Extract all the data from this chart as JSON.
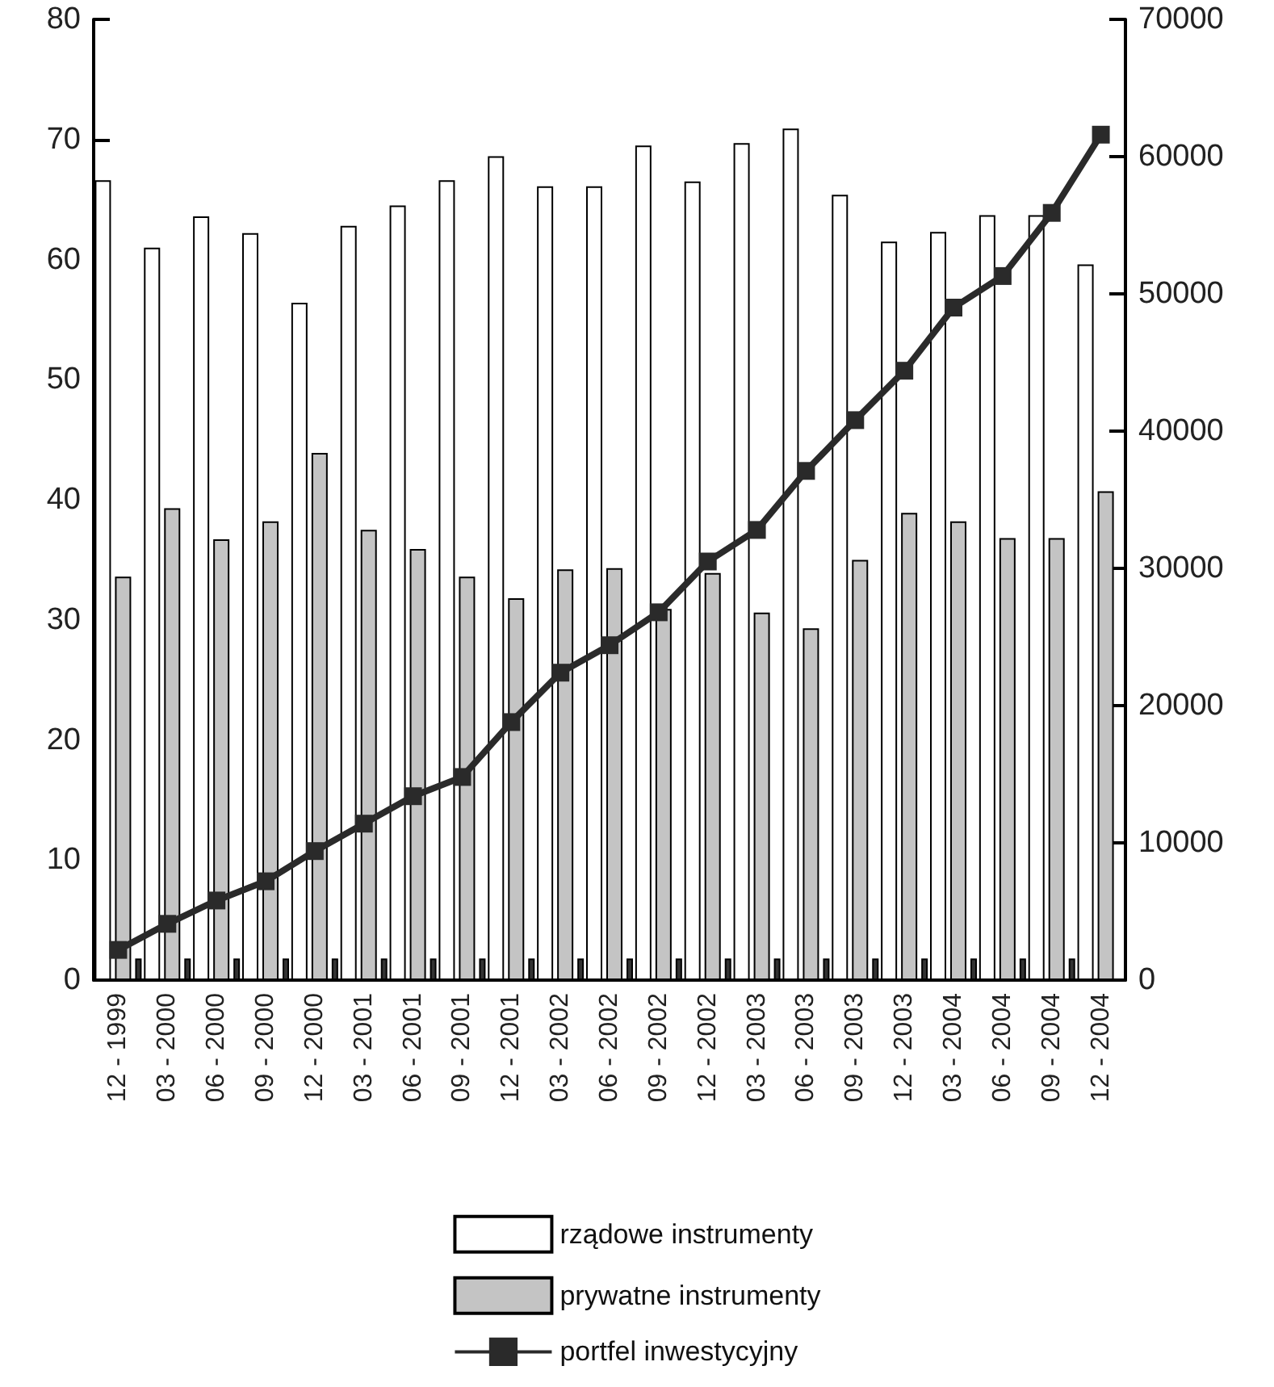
{
  "chart_data": {
    "type": "bar",
    "categories": [
      "12 - 1999",
      "03 - 2000",
      "06 - 2000",
      "09 - 2000",
      "12 - 2000",
      "03 - 2001",
      "06 - 2001",
      "09 - 2001",
      "12 - 2001",
      "03 - 2002",
      "06 - 2002",
      "09 - 2002",
      "12 - 2002",
      "03 - 2003",
      "06 - 2003",
      "09 - 2003",
      "12 - 2003",
      "03 - 2004",
      "06 - 2004",
      "09 - 2004",
      "12 - 2004"
    ],
    "series": [
      {
        "name": "rządowe instrumenty",
        "color": "#ffffff",
        "values": [
          66.6,
          61.0,
          63.6,
          62.2,
          56.4,
          62.8,
          64.5,
          66.6,
          68.6,
          66.1,
          66.1,
          69.5,
          66.5,
          69.7,
          70.9,
          65.4,
          61.5,
          62.3,
          63.7,
          63.7,
          59.6
        ]
      },
      {
        "name": "prywatne instrumenty",
        "color": "#c4c4c4",
        "values": [
          33.6,
          39.3,
          36.7,
          38.2,
          43.9,
          37.5,
          35.9,
          33.6,
          31.8,
          34.2,
          34.3,
          30.9,
          33.9,
          30.6,
          29.3,
          35.0,
          38.9,
          38.2,
          36.8,
          36.8,
          40.7
        ]
      },
      {
        "color": "#333333",
        "values": [
          1.8,
          1.8,
          1.8,
          1.8,
          1.8,
          1.8,
          1.8,
          1.8,
          1.8,
          1.8,
          1.8,
          1.8,
          1.8,
          1.8,
          1.8,
          1.8,
          1.8,
          1.8,
          1.8,
          1.8,
          null
        ]
      },
      {
        "name": "portfel inwestycyjny",
        "type": "line",
        "axis": "y2",
        "color": "#2a2a2a",
        "marker": "square",
        "values": [
          2200,
          4100,
          5800,
          7200,
          9400,
          11400,
          13400,
          14800,
          18800,
          22400,
          24400,
          26800,
          30500,
          32800,
          37100,
          40800,
          44400,
          49000,
          51300,
          55900,
          61600
        ]
      }
    ],
    "ylim": [
      0,
      80
    ],
    "yticks": [
      0,
      10,
      20,
      30,
      40,
      50,
      60,
      70,
      80
    ],
    "y2lim": [
      0,
      70000
    ],
    "y2ticks": [
      0,
      10000,
      20000,
      30000,
      40000,
      50000,
      60000,
      70000
    ],
    "legend": "bottom",
    "grid": false
  }
}
